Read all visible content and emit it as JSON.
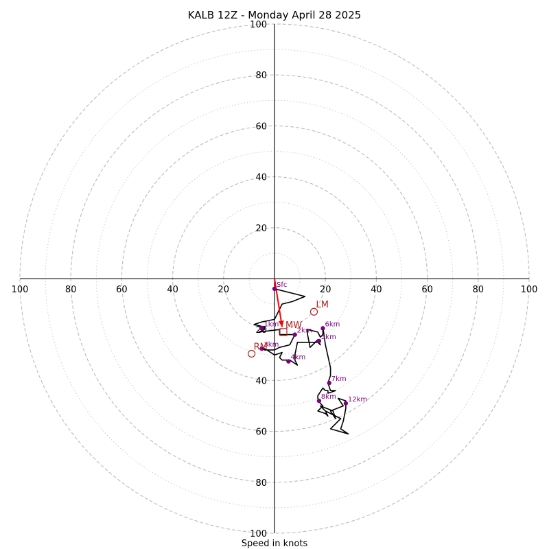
{
  "chart_data": {
    "type": "hodograph",
    "title": "KALB 12Z - Monday April 28 2025",
    "xlabel": "Speed in knots",
    "unit": "knots",
    "range": [
      -100,
      100
    ],
    "major_rings": [
      20,
      40,
      60,
      80,
      100
    ],
    "minor_rings": [
      10,
      30,
      50,
      70,
      90
    ],
    "tick_labels": [
      "100",
      "80",
      "60",
      "40",
      "20",
      "20",
      "40",
      "60",
      "80",
      "100"
    ],
    "hodograph_trace": [
      [
        0,
        -4
      ],
      [
        12,
        -7
      ],
      [
        7,
        -9
      ],
      [
        3,
        -10
      ],
      [
        0,
        -16
      ],
      [
        -5,
        -17
      ],
      [
        -8,
        -18
      ],
      [
        -4,
        -19
      ],
      [
        -4,
        -20
      ],
      [
        -6,
        -21
      ],
      [
        2,
        -20
      ],
      [
        2,
        -22
      ],
      [
        5,
        -22
      ],
      [
        8,
        -22
      ],
      [
        7,
        -24
      ],
      [
        6,
        -26
      ],
      [
        2,
        -27
      ],
      [
        0,
        -28
      ],
      [
        -2,
        -28
      ],
      [
        -4,
        -28
      ],
      [
        -5,
        -27
      ],
      [
        -3,
        -28
      ],
      [
        0,
        -30
      ],
      [
        3,
        -29
      ],
      [
        2,
        -31
      ],
      [
        3,
        -32
      ],
      [
        4,
        -32
      ],
      [
        6,
        -32
      ],
      [
        9,
        -34
      ],
      [
        8,
        -32
      ],
      [
        8,
        -30
      ],
      [
        9,
        -25
      ],
      [
        17,
        -25
      ],
      [
        18,
        -26
      ],
      [
        17,
        -24
      ],
      [
        14,
        -27
      ],
      [
        13,
        -22
      ],
      [
        13,
        -20
      ],
      [
        17,
        -21
      ],
      [
        18,
        -23
      ],
      [
        19,
        -22
      ],
      [
        19,
        -19
      ],
      [
        20,
        -26
      ],
      [
        22,
        -35
      ],
      [
        22,
        -38
      ],
      [
        21,
        -41
      ],
      [
        22,
        -44
      ],
      [
        24,
        -44
      ],
      [
        21,
        -45
      ],
      [
        21,
        -44
      ],
      [
        20,
        -44
      ],
      [
        19,
        -43
      ],
      [
        17,
        -46
      ],
      [
        17,
        -47
      ],
      [
        18,
        -49
      ],
      [
        19,
        -50
      ],
      [
        17,
        -52
      ],
      [
        20,
        -53
      ],
      [
        21,
        -54
      ],
      [
        20,
        -52
      ],
      [
        18,
        -50
      ],
      [
        23,
        -52
      ],
      [
        24,
        -55
      ],
      [
        22,
        -52
      ],
      [
        27,
        -50
      ],
      [
        25,
        -47
      ],
      [
        28,
        -48
      ],
      [
        28,
        -51
      ],
      [
        27,
        -56
      ],
      [
        26,
        -59
      ],
      [
        29,
        -61
      ],
      [
        22,
        -59
      ],
      [
        26,
        -55
      ],
      [
        20,
        -52
      ]
    ],
    "height_markers": [
      {
        "label": "Sfc",
        "u": 0,
        "v": -4
      },
      {
        "label": "1km",
        "u": -5,
        "v": -19.5
      },
      {
        "label": "2km",
        "u": 8,
        "v": -22
      },
      {
        "label": "3km",
        "u": -5,
        "v": -27.5
      },
      {
        "label": "4km",
        "u": 5.5,
        "v": -32.5
      },
      {
        "label": "5km",
        "u": 17.5,
        "v": -24.5
      },
      {
        "label": "6km",
        "u": 19,
        "v": -19.5
      },
      {
        "label": "7km",
        "u": 21.5,
        "v": -41
      },
      {
        "label": "8km",
        "u": 17.5,
        "v": -48
      },
      {
        "label": "12km",
        "u": 28,
        "v": -49
      }
    ],
    "motion_vectors": [
      {
        "label": "LM",
        "u": 15.5,
        "v": -13,
        "marker": "circle"
      },
      {
        "label": "MW",
        "u": 3.5,
        "v": -21,
        "marker": "square"
      },
      {
        "label": "RM",
        "u": -9,
        "v": -29.5,
        "marker": "circle"
      }
    ],
    "shear_vector": {
      "from": [
        0,
        0
      ],
      "to": [
        3,
        -19
      ]
    },
    "colors": {
      "trace": "#000000",
      "markers": "#800080",
      "motion": "#b22222",
      "shear": "#ff0000",
      "grid": "#bbbbbb",
      "grid_minor": "#cccccc",
      "axes": "#000000"
    }
  }
}
